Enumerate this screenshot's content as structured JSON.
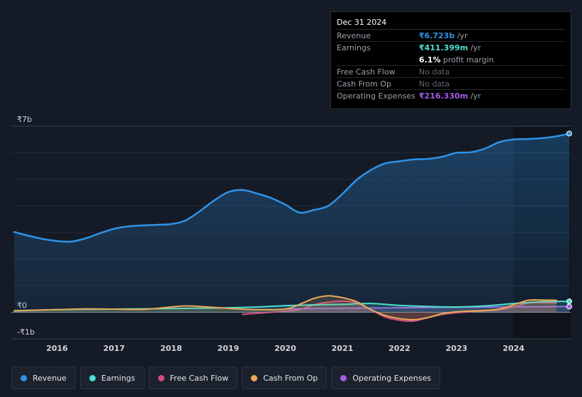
{
  "tooltip": {
    "date": "Dec 31 2024",
    "rows": [
      {
        "label": "Revenue",
        "value": "₹6.723b",
        "unit": " /yr",
        "color": "#2e93e8"
      },
      {
        "label": "Earnings",
        "value": "₹411.399m",
        "unit": " /yr",
        "color": "#4de0d0"
      },
      {
        "label": "",
        "value": "6.1%",
        "unit": " profit margin",
        "color": "#ffffff"
      },
      {
        "label": "Free Cash Flow",
        "value": "No data",
        "unit": "",
        "color": "#5f6570"
      },
      {
        "label": "Cash From Op",
        "value": "No data",
        "unit": "",
        "color": "#5f6570"
      },
      {
        "label": "Operating Expenses",
        "value": "₹216.330m",
        "unit": " /yr",
        "color": "#a35ce8"
      }
    ]
  },
  "legend": [
    {
      "label": "Revenue",
      "color": "#2e93e8"
    },
    {
      "label": "Earnings",
      "color": "#4de0d0"
    },
    {
      "label": "Free Cash Flow",
      "color": "#d04e82"
    },
    {
      "label": "Cash From Op",
      "color": "#e8a85a"
    },
    {
      "label": "Operating Expenses",
      "color": "#a35ce8"
    }
  ],
  "chart_data": {
    "type": "line",
    "title": "",
    "xlabel": "",
    "ylabel": "",
    "ylim": [
      -1,
      7
    ],
    "xlim": [
      2015.2,
      2025.0
    ],
    "y_tick_labels": [
      {
        "value": 7,
        "label": "₹7b"
      },
      {
        "value": 0,
        "label": "₹0"
      },
      {
        "value": -1,
        "label": "-₹1b"
      }
    ],
    "x_tick_labels": [
      "2016",
      "2017",
      "2018",
      "2019",
      "2020",
      "2021",
      "2022",
      "2023",
      "2024"
    ],
    "x_tick_values": [
      2016,
      2017,
      2018,
      2019,
      2020,
      2021,
      2022,
      2023,
      2024
    ],
    "highlight_start": 2024.0,
    "series": [
      {
        "name": "Revenue",
        "color": "#2e93e8",
        "area": true,
        "x": [
          2015.25,
          2015.5,
          2015.75,
          2016.0,
          2016.25,
          2016.5,
          2016.75,
          2017.0,
          2017.25,
          2017.5,
          2017.75,
          2018.0,
          2018.25,
          2018.5,
          2018.75,
          2019.0,
          2019.25,
          2019.5,
          2019.75,
          2020.0,
          2020.25,
          2020.5,
          2020.75,
          2021.0,
          2021.25,
          2021.5,
          2021.75,
          2022.0,
          2022.25,
          2022.5,
          2022.75,
          2023.0,
          2023.25,
          2023.5,
          2023.75,
          2024.0,
          2024.25,
          2024.5,
          2024.75,
          2024.98
        ],
        "values": [
          3.02,
          2.88,
          2.76,
          2.68,
          2.66,
          2.78,
          2.97,
          3.14,
          3.23,
          3.27,
          3.29,
          3.32,
          3.45,
          3.8,
          4.2,
          4.52,
          4.6,
          4.47,
          4.3,
          4.05,
          3.75,
          3.85,
          4.0,
          4.45,
          4.98,
          5.35,
          5.6,
          5.68,
          5.75,
          5.77,
          5.85,
          6.0,
          6.02,
          6.16,
          6.4,
          6.5,
          6.52,
          6.55,
          6.62,
          6.723
        ]
      },
      {
        "name": "Earnings",
        "color": "#4de0d0",
        "area": true,
        "x": [
          2015.25,
          2016.0,
          2017.0,
          2018.0,
          2019.0,
          2019.5,
          2020.0,
          2020.5,
          2021.0,
          2021.5,
          2022.0,
          2022.5,
          2023.0,
          2023.5,
          2024.0,
          2024.5,
          2024.98
        ],
        "values": [
          0.05,
          0.1,
          0.12,
          0.14,
          0.17,
          0.2,
          0.25,
          0.28,
          0.3,
          0.33,
          0.26,
          0.22,
          0.2,
          0.24,
          0.33,
          0.4,
          0.411
        ]
      },
      {
        "name": "Free Cash Flow",
        "color": "#d04e82",
        "area": true,
        "x": [
          2019.25,
          2019.5,
          2019.75,
          2020.0,
          2020.25,
          2020.5,
          2020.75,
          2021.0,
          2021.25,
          2021.5,
          2021.75,
          2022.0,
          2022.25,
          2022.5,
          2022.75,
          2023.0,
          2023.25,
          2023.5,
          2023.75,
          2024.0,
          2024.25,
          2024.5,
          2024.75
        ],
        "values": [
          -0.08,
          -0.04,
          0.0,
          0.04,
          0.1,
          0.28,
          0.38,
          0.42,
          0.35,
          0.1,
          -0.18,
          -0.3,
          -0.33,
          -0.2,
          -0.08,
          -0.02,
          0.02,
          0.06,
          0.1,
          0.2,
          0.35,
          0.36,
          0.35
        ]
      },
      {
        "name": "Cash From Op",
        "color": "#e8a85a",
        "area": true,
        "x": [
          2015.25,
          2016.0,
          2016.5,
          2017.0,
          2017.5,
          2018.0,
          2018.25,
          2018.5,
          2019.0,
          2019.5,
          2020.0,
          2020.25,
          2020.5,
          2020.75,
          2021.0,
          2021.25,
          2021.5,
          2021.75,
          2022.0,
          2022.25,
          2022.5,
          2022.75,
          2023.0,
          2023.25,
          2023.5,
          2023.75,
          2024.0,
          2024.25,
          2024.5,
          2024.75
        ],
        "values": [
          0.06,
          0.1,
          0.13,
          0.12,
          0.11,
          0.2,
          0.24,
          0.22,
          0.15,
          0.1,
          0.12,
          0.3,
          0.52,
          0.62,
          0.55,
          0.4,
          0.1,
          -0.12,
          -0.24,
          -0.28,
          -0.2,
          -0.05,
          0.02,
          0.05,
          0.07,
          0.12,
          0.28,
          0.45,
          0.46,
          0.45
        ]
      },
      {
        "name": "Operating Expenses",
        "color": "#a35ce8",
        "area": true,
        "x": [
          2020.0,
          2020.5,
          2021.0,
          2021.5,
          2022.0,
          2022.5,
          2023.0,
          2023.5,
          2024.0,
          2024.5,
          2024.98
        ],
        "values": [
          0.12,
          0.14,
          0.15,
          0.16,
          0.17,
          0.18,
          0.19,
          0.2,
          0.205,
          0.21,
          0.216
        ]
      }
    ]
  }
}
